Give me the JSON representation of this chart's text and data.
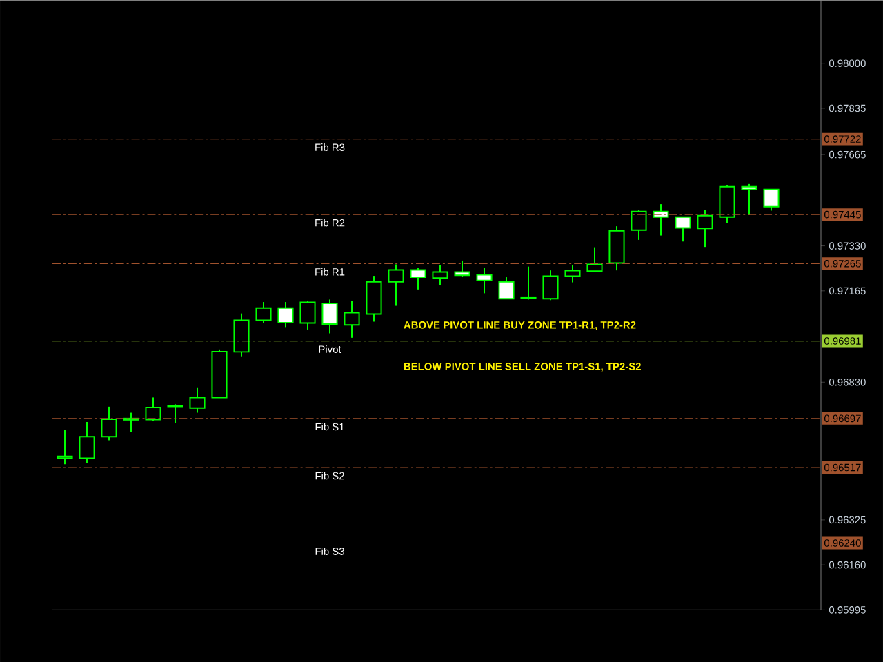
{
  "chart_data": {
    "type": "candlestick",
    "color": "#00ff00",
    "categories": [
      null,
      null,
      null,
      null,
      null,
      null,
      null,
      null,
      null,
      null,
      null,
      null,
      null,
      null,
      null,
      null,
      null,
      null,
      null,
      null,
      null,
      null,
      null,
      null,
      null,
      null,
      null,
      null,
      null,
      null,
      null,
      null,
      null
    ],
    "ohlc": [
      [
        0.96552,
        0.96656,
        0.96529,
        0.96558
      ],
      [
        0.96551,
        0.96684,
        0.96533,
        0.9663
      ],
      [
        0.9663,
        0.9674,
        0.96617,
        0.96694
      ],
      [
        0.96692,
        0.96718,
        0.96648,
        0.96697
      ],
      [
        0.96693,
        0.96774,
        0.96689,
        0.96737
      ],
      [
        0.96741,
        0.96749,
        0.96681,
        0.96744
      ],
      [
        0.96735,
        0.96811,
        0.96718,
        0.96774
      ],
      [
        0.96774,
        0.9695,
        0.96774,
        0.96942
      ],
      [
        0.96941,
        0.97082,
        0.96925,
        0.97057
      ],
      [
        0.97057,
        0.97124,
        0.97048,
        0.97102
      ],
      [
        0.97102,
        0.97124,
        0.97032,
        0.97048
      ],
      [
        0.97047,
        0.97128,
        0.97023,
        0.97123
      ],
      [
        0.97119,
        0.97133,
        0.97009,
        0.97043
      ],
      [
        0.9704,
        0.97128,
        0.96993,
        0.97085
      ],
      [
        0.9708,
        0.9722,
        0.97052,
        0.97198
      ],
      [
        0.97198,
        0.97262,
        0.9711,
        0.97242
      ],
      [
        0.97242,
        0.9725,
        0.9717,
        0.97215
      ],
      [
        0.97212,
        0.97259,
        0.97186,
        0.97234
      ],
      [
        0.97234,
        0.97276,
        0.97217,
        0.97222
      ],
      [
        0.97224,
        0.9725,
        0.97156,
        0.97203
      ],
      [
        0.97198,
        0.97215,
        0.97136,
        0.97136
      ],
      [
        0.97142,
        0.97254,
        0.97133,
        0.97139
      ],
      [
        0.97136,
        0.9724,
        0.97131,
        0.97219
      ],
      [
        0.97219,
        0.97259,
        0.97196,
        0.97239
      ],
      [
        0.97237,
        0.97325,
        0.97234,
        0.97262
      ],
      [
        0.97267,
        0.97402,
        0.9724,
        0.97385
      ],
      [
        0.97388,
        0.97463,
        0.97352,
        0.97456
      ],
      [
        0.97456,
        0.97483,
        0.97368,
        0.97436
      ],
      [
        0.97436,
        0.97436,
        0.97346,
        0.97396
      ],
      [
        0.97394,
        0.97461,
        0.97326,
        0.97441
      ],
      [
        0.97436,
        0.97552,
        0.97414,
        0.97547
      ],
      [
        0.97547,
        0.97557,
        0.97443,
        0.97537
      ],
      [
        0.97537,
        0.97537,
        0.97459,
        0.97474
      ]
    ],
    "ylim": [
      0.95995,
      0.98231
    ],
    "yticks": [
      {
        "value": 0.98,
        "label": "0.98000"
      },
      {
        "value": 0.97835,
        "label": "0.97835"
      },
      {
        "value": 0.97665,
        "label": "0.97665"
      },
      {
        "value": 0.9733,
        "label": "0.97330"
      },
      {
        "value": 0.97165,
        "label": "0.97165"
      },
      {
        "value": 0.9683,
        "label": "0.96830"
      },
      {
        "value": 0.96325,
        "label": "0.96325"
      },
      {
        "value": 0.9616,
        "label": "0.96160"
      },
      {
        "value": 0.95995,
        "label": "0.95995"
      }
    ],
    "tick_labels": "y",
    "ref_lines": [
      {
        "axis": "y",
        "value": 0.97722,
        "label": "Fib R3",
        "color": "#a0522d",
        "line_style": "dashed"
      },
      {
        "axis": "y",
        "value": 0.97445,
        "label": "Fib R2",
        "color": "#a0522d",
        "line_style": "dashed"
      },
      {
        "axis": "y",
        "value": 0.97265,
        "label": "Fib R1",
        "color": "#a0522d",
        "line_style": "dashed"
      },
      {
        "axis": "y",
        "value": 0.96981,
        "label": "Pivot",
        "color": "#9acd32",
        "line_style": "dashed"
      },
      {
        "axis": "y",
        "value": 0.96697,
        "label": "Fib S1",
        "color": "#a0522d",
        "line_style": "dashed"
      },
      {
        "axis": "y",
        "value": 0.96517,
        "label": "Fib S2",
        "color": "#a0522d",
        "line_style": "dashed"
      },
      {
        "axis": "y",
        "value": 0.9624,
        "label": "Fib S3",
        "color": "#a0522d",
        "line_style": "dashed"
      }
    ],
    "annotations": [
      "0.97722",
      "0.97445",
      "0.97265",
      "0.96981",
      "0.96697",
      "0.96517",
      "0.96240",
      "ABOVE PIVOT LINE BUY ZONE TP1-R1, TP2-R2",
      "BELOW PIVOT LINE SELL ZONE TP1-S1, TP2-S2"
    ]
  }
}
